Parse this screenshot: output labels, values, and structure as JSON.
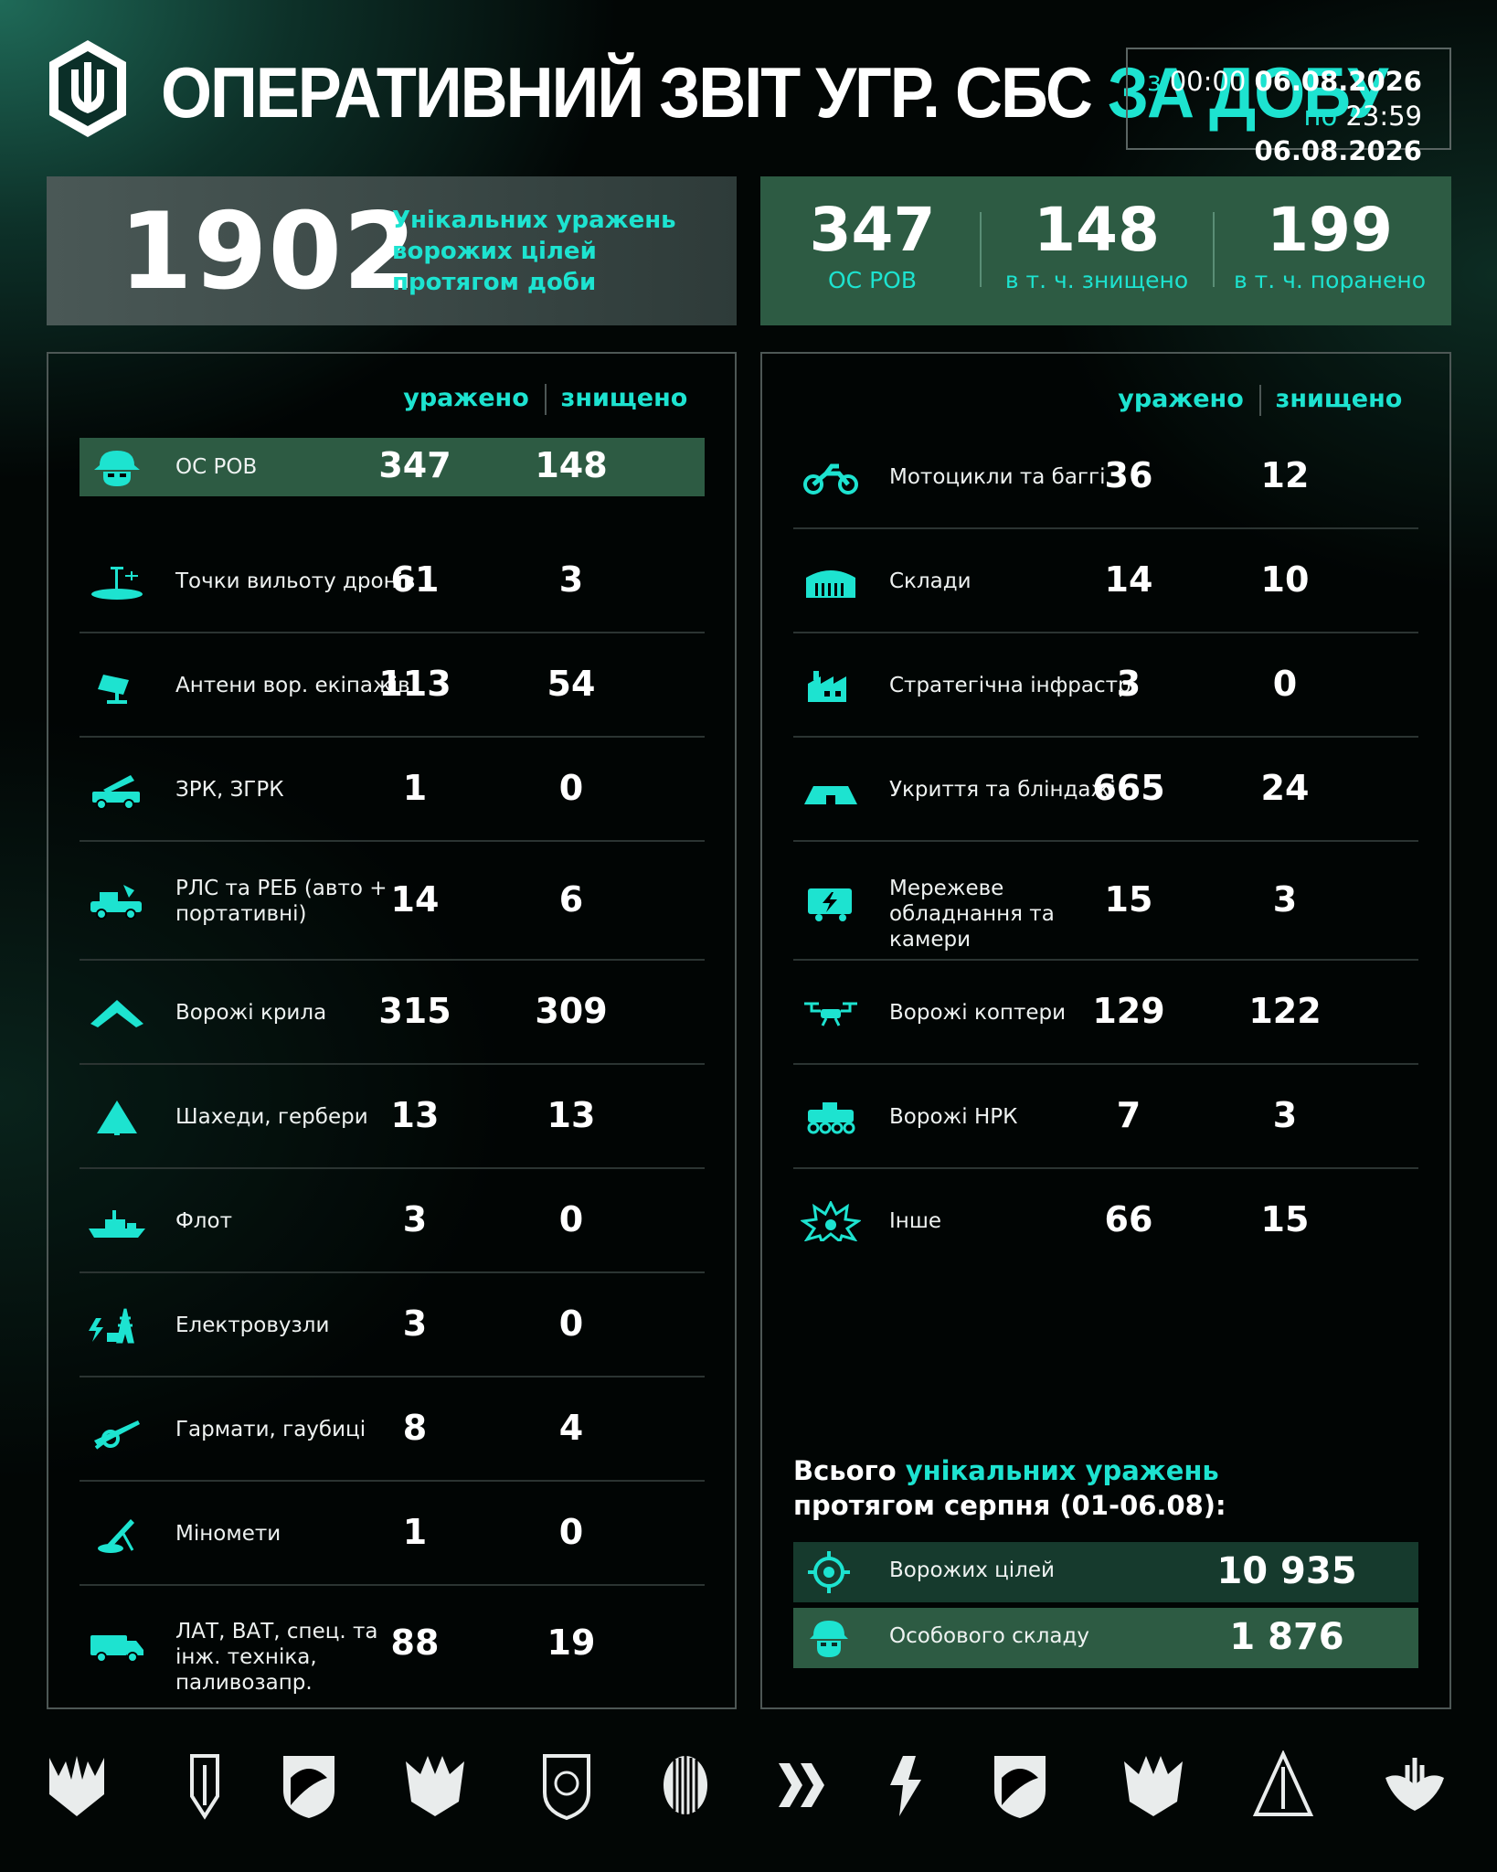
{
  "header": {
    "title_main": "ОПЕРАТИВНИЙ ЗВІТ УГР. СБС ",
    "title_accent": "ЗА ДОБУ",
    "period_from_prefix": "з",
    "period_from_time": "00:00",
    "period_from_date": "06.08.2026",
    "period_to_prefix": "по",
    "period_to_time": "23:59",
    "period_to_date": "06.08.2026"
  },
  "summary": {
    "total": "1902",
    "total_caption": "Унікальних уражень ворожих цілей протягом доби",
    "personnel": [
      {
        "value": "347",
        "label": "ОС РОВ"
      },
      {
        "value": "148",
        "label": "в т. ч. знищено"
      },
      {
        "value": "199",
        "label": "в т. ч. поранено"
      }
    ]
  },
  "columns": {
    "hit": "уражено",
    "destroyed": "знищено"
  },
  "left_rows": [
    {
      "icon": "soldier-helmet-icon",
      "label": "ОС РОВ",
      "hit": "347",
      "destroyed": "148"
    },
    {
      "icon": "drone-launch-site-icon",
      "label": "Точки вильоту дронів",
      "hit": "61",
      "destroyed": "3"
    },
    {
      "icon": "antenna-dish-icon",
      "label": "Антени вор. екіпажів",
      "hit": "113",
      "destroyed": "54"
    },
    {
      "icon": "missile-launcher-truck-icon",
      "label": "ЗРК, ЗГРК",
      "hit": "1",
      "destroyed": "0"
    },
    {
      "icon": "radar-vehicle-icon",
      "label": "РЛС та РЕБ (авто + портативні)",
      "hit": "14",
      "destroyed": "6"
    },
    {
      "icon": "wing-drone-icon",
      "label": "Ворожі крила",
      "hit": "315",
      "destroyed": "309"
    },
    {
      "icon": "shahed-drone-icon",
      "label": "Шахеди, гербери",
      "hit": "13",
      "destroyed": "13"
    },
    {
      "icon": "warship-icon",
      "label": "Флот",
      "hit": "3",
      "destroyed": "0"
    },
    {
      "icon": "power-substation-icon",
      "label": "Електровузли",
      "hit": "3",
      "destroyed": "0"
    },
    {
      "icon": "howitzer-icon",
      "label": "Гармати, гаубиці",
      "hit": "8",
      "destroyed": "4"
    },
    {
      "icon": "mortar-icon",
      "label": "Міномети",
      "hit": "1",
      "destroyed": "0"
    },
    {
      "icon": "military-truck-icon",
      "label": "ЛАТ, ВАТ, спец. та інж. техніка, паливозапр.",
      "hit": "88",
      "destroyed": "19"
    }
  ],
  "right_rows": [
    {
      "icon": "motorcycle-icon",
      "label": "Мотоцикли та баггі",
      "hit": "36",
      "destroyed": "12"
    },
    {
      "icon": "warehouse-icon",
      "label": "Склади",
      "hit": "14",
      "destroyed": "10"
    },
    {
      "icon": "factory-icon",
      "label": "Стратегічна інфрастр.",
      "hit": "3",
      "destroyed": "0"
    },
    {
      "icon": "bunker-icon",
      "label": "Укриття та бліндажі",
      "hit": "665",
      "destroyed": "24"
    },
    {
      "icon": "network-camera-icon",
      "label": "Мережеве обладнання та камери",
      "hit": "15",
      "destroyed": "3"
    },
    {
      "icon": "quadcopter-icon",
      "label": "Ворожі коптери",
      "hit": "129",
      "destroyed": "122"
    },
    {
      "icon": "ground-robot-icon",
      "label": "Ворожі НРК",
      "hit": "7",
      "destroyed": "3"
    },
    {
      "icon": "explosion-icon",
      "label": "Інше",
      "hit": "66",
      "destroyed": "15"
    }
  ],
  "month_total": {
    "title_pre": "Всього ",
    "title_accent": "унікальних уражень",
    "title_post": "протягом серпня (01-06.08):",
    "rows": [
      {
        "icon": "target-icon",
        "label": "Ворожих цілей",
        "value": "10 935"
      },
      {
        "icon": "soldier-helmet-icon",
        "label": "Особового складу",
        "value": "1 876"
      }
    ]
  },
  "colors": {
    "accent": "#1de3d0",
    "highlight": "#2d5b43"
  },
  "footer_logos": [
    "trident-wings-logo",
    "arrow-shield-logo",
    "eagle-shield-logo",
    "bat-wings-logo",
    "badge-shield-logo",
    "striped-oval-logo",
    "double-chevron-logo",
    "lightning-rune-logo",
    "bird-head-logo",
    "hawk-crest-logo",
    "triangle-sword-logo",
    "trident-winged-logo"
  ]
}
